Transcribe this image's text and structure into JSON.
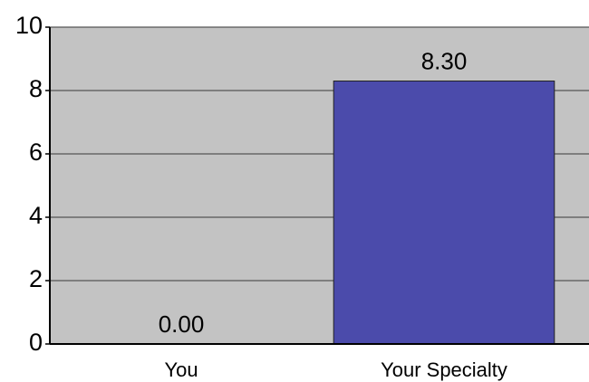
{
  "chart_data": {
    "type": "bar",
    "categories": [
      "You",
      "Your Specialty"
    ],
    "values": [
      0,
      8.3
    ],
    "value_labels": [
      "0.00",
      "8.30"
    ],
    "color": "#4b4bab",
    "ylim": [
      0,
      10
    ],
    "yticks": [
      0,
      2,
      4,
      6,
      8,
      10
    ],
    "grid": true
  }
}
